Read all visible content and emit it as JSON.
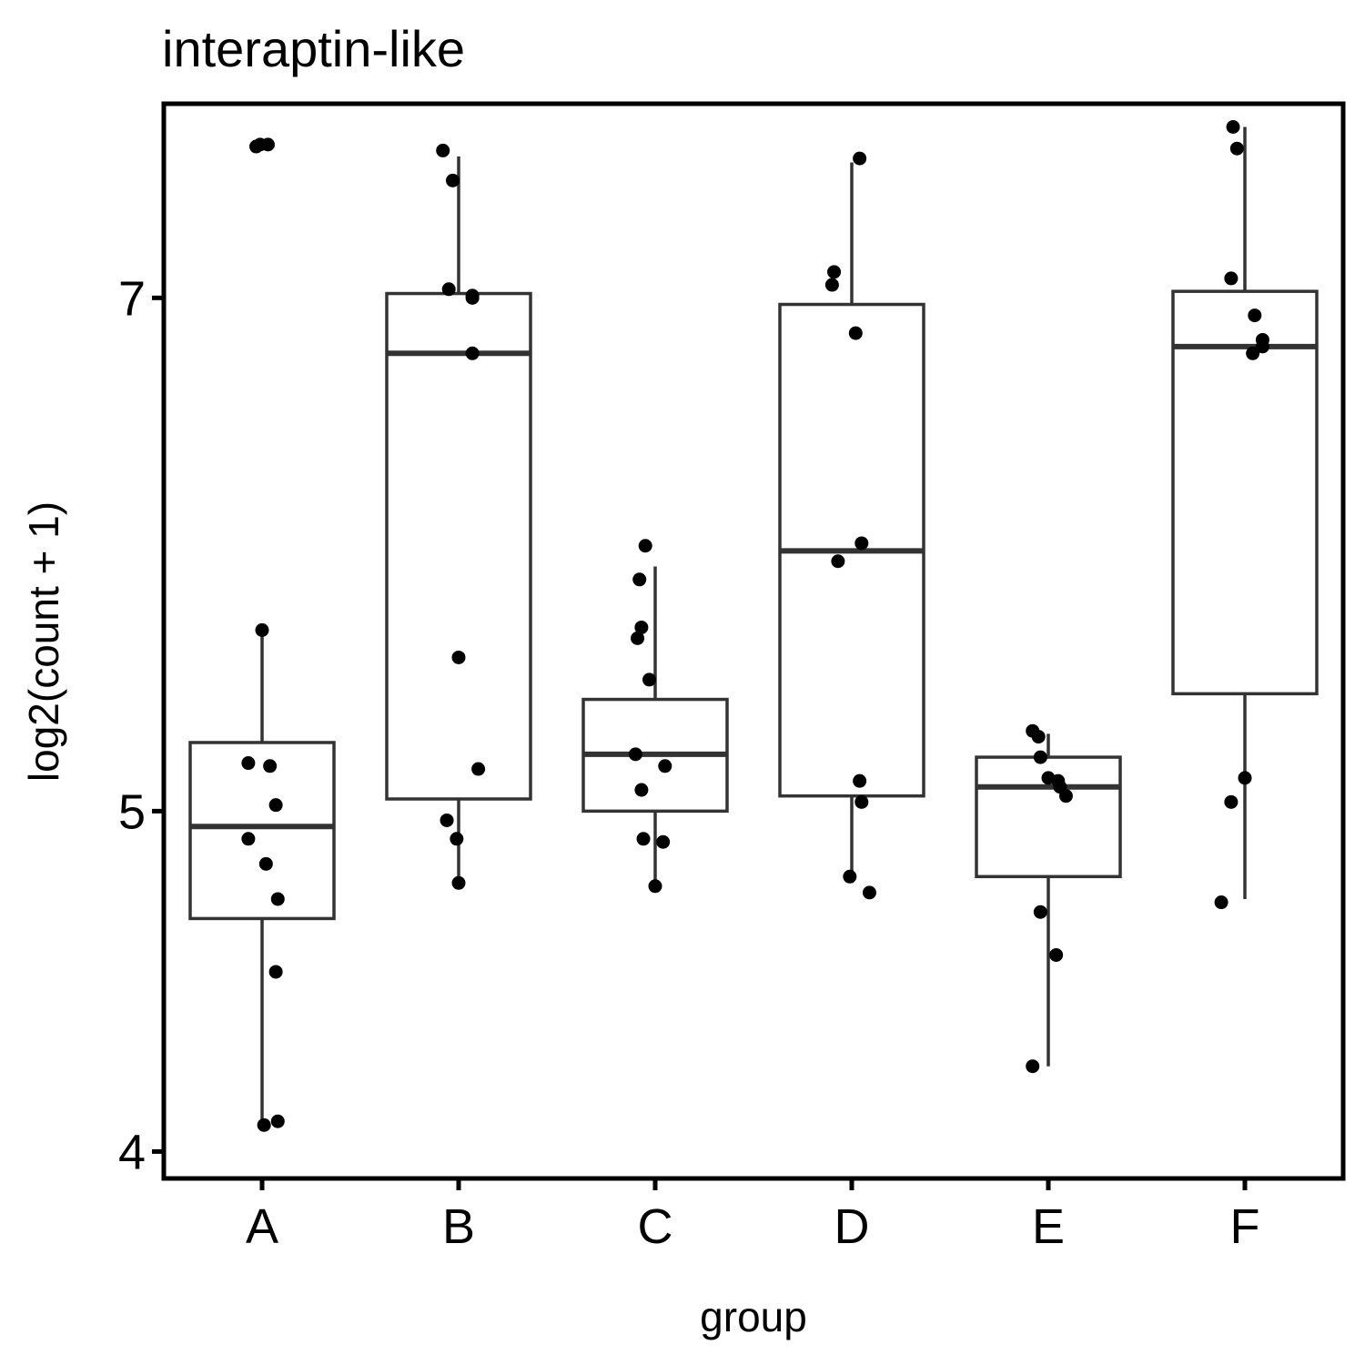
{
  "chart_data": {
    "type": "box",
    "title": "interaptin-like",
    "xlabel": "group",
    "ylabel": "log2(count + 1)",
    "y_scale": "log2",
    "ylim": [
      3.93,
      7.95
    ],
    "yticks": [
      4,
      5,
      7
    ],
    "categories": [
      "A",
      "B",
      "C",
      "D",
      "E",
      "F"
    ],
    "boxes": [
      {
        "group": "A",
        "lower_whisker": 4.07,
        "q1": 4.66,
        "median": 4.95,
        "q3": 5.23,
        "upper_whisker": 5.63
      },
      {
        "group": "B",
        "lower_whisker": 4.77,
        "q1": 5.04,
        "median": 6.75,
        "q3": 7.02,
        "upper_whisker": 7.68
      },
      {
        "group": "C",
        "lower_whisker": 4.76,
        "q1": 5.0,
        "median": 5.19,
        "q3": 5.38,
        "upper_whisker": 5.87
      },
      {
        "group": "D",
        "lower_whisker": 4.77,
        "q1": 5.05,
        "median": 5.93,
        "q3": 6.97,
        "upper_whisker": 7.65
      },
      {
        "group": "E",
        "lower_whisker": 4.23,
        "q1": 4.79,
        "median": 5.08,
        "q3": 5.18,
        "upper_whisker": 5.26
      },
      {
        "group": "F",
        "lower_whisker": 4.72,
        "q1": 5.4,
        "median": 6.78,
        "q3": 7.03,
        "upper_whisker": 7.83
      }
    ],
    "points": [
      {
        "group": "A",
        "dx": -0.03,
        "y": 7.73
      },
      {
        "group": "A",
        "dx": -0.01,
        "y": 7.74
      },
      {
        "group": "A",
        "dx": 0.03,
        "y": 7.74
      },
      {
        "group": "A",
        "dx": 0.0,
        "y": 5.63
      },
      {
        "group": "A",
        "dx": -0.07,
        "y": 5.16
      },
      {
        "group": "A",
        "dx": 0.04,
        "y": 5.15
      },
      {
        "group": "A",
        "dx": 0.07,
        "y": 5.02
      },
      {
        "group": "A",
        "dx": -0.07,
        "y": 4.91
      },
      {
        "group": "A",
        "dx": 0.02,
        "y": 4.83
      },
      {
        "group": "A",
        "dx": 0.08,
        "y": 4.72
      },
      {
        "group": "A",
        "dx": 0.07,
        "y": 4.5
      },
      {
        "group": "A",
        "dx": 0.01,
        "y": 4.07
      },
      {
        "group": "A",
        "dx": 0.08,
        "y": 4.08
      },
      {
        "group": "B",
        "dx": -0.08,
        "y": 7.71
      },
      {
        "group": "B",
        "dx": -0.03,
        "y": 7.56
      },
      {
        "group": "B",
        "dx": -0.05,
        "y": 7.04
      },
      {
        "group": "B",
        "dx": 0.07,
        "y": 7.01
      },
      {
        "group": "B",
        "dx": 0.07,
        "y": 7.0
      },
      {
        "group": "B",
        "dx": 0.07,
        "y": 6.75
      },
      {
        "group": "B",
        "dx": 0.0,
        "y": 5.53
      },
      {
        "group": "B",
        "dx": 0.1,
        "y": 5.14
      },
      {
        "group": "B",
        "dx": -0.06,
        "y": 4.97
      },
      {
        "group": "B",
        "dx": -0.01,
        "y": 4.91
      },
      {
        "group": "B",
        "dx": 0.0,
        "y": 4.77
      },
      {
        "group": "C",
        "dx": -0.05,
        "y": 5.95
      },
      {
        "group": "C",
        "dx": -0.08,
        "y": 5.82
      },
      {
        "group": "C",
        "dx": -0.07,
        "y": 5.64
      },
      {
        "group": "C",
        "dx": -0.09,
        "y": 5.6
      },
      {
        "group": "C",
        "dx": -0.03,
        "y": 5.45
      },
      {
        "group": "C",
        "dx": -0.1,
        "y": 5.19
      },
      {
        "group": "C",
        "dx": 0.05,
        "y": 5.15
      },
      {
        "group": "C",
        "dx": -0.07,
        "y": 5.07
      },
      {
        "group": "C",
        "dx": -0.06,
        "y": 4.91
      },
      {
        "group": "C",
        "dx": 0.04,
        "y": 4.9
      },
      {
        "group": "C",
        "dx": 0.0,
        "y": 4.76
      },
      {
        "group": "D",
        "dx": 0.04,
        "y": 7.67
      },
      {
        "group": "D",
        "dx": -0.09,
        "y": 7.12
      },
      {
        "group": "D",
        "dx": -0.1,
        "y": 7.06
      },
      {
        "group": "D",
        "dx": 0.02,
        "y": 6.84
      },
      {
        "group": "D",
        "dx": 0.05,
        "y": 5.96
      },
      {
        "group": "D",
        "dx": -0.07,
        "y": 5.89
      },
      {
        "group": "D",
        "dx": 0.04,
        "y": 5.1
      },
      {
        "group": "D",
        "dx": 0.05,
        "y": 5.03
      },
      {
        "group": "D",
        "dx": -0.01,
        "y": 4.79
      },
      {
        "group": "D",
        "dx": 0.09,
        "y": 4.74
      },
      {
        "group": "E",
        "dx": -0.08,
        "y": 5.27
      },
      {
        "group": "E",
        "dx": -0.05,
        "y": 5.25
      },
      {
        "group": "E",
        "dx": -0.04,
        "y": 5.18
      },
      {
        "group": "E",
        "dx": 0.0,
        "y": 5.11
      },
      {
        "group": "E",
        "dx": 0.05,
        "y": 5.1
      },
      {
        "group": "E",
        "dx": 0.06,
        "y": 5.08
      },
      {
        "group": "E",
        "dx": 0.09,
        "y": 5.05
      },
      {
        "group": "E",
        "dx": -0.04,
        "y": 4.68
      },
      {
        "group": "E",
        "dx": 0.04,
        "y": 4.55
      },
      {
        "group": "E",
        "dx": -0.08,
        "y": 4.23
      },
      {
        "group": "F",
        "dx": -0.06,
        "y": 7.83
      },
      {
        "group": "F",
        "dx": -0.04,
        "y": 7.72
      },
      {
        "group": "F",
        "dx": -0.07,
        "y": 7.09
      },
      {
        "group": "F",
        "dx": 0.05,
        "y": 6.92
      },
      {
        "group": "F",
        "dx": 0.09,
        "y": 6.81
      },
      {
        "group": "F",
        "dx": 0.09,
        "y": 6.78
      },
      {
        "group": "F",
        "dx": 0.04,
        "y": 6.75
      },
      {
        "group": "F",
        "dx": 0.0,
        "y": 5.11
      },
      {
        "group": "F",
        "dx": -0.07,
        "y": 5.03
      },
      {
        "group": "F",
        "dx": -0.12,
        "y": 4.71
      }
    ]
  }
}
